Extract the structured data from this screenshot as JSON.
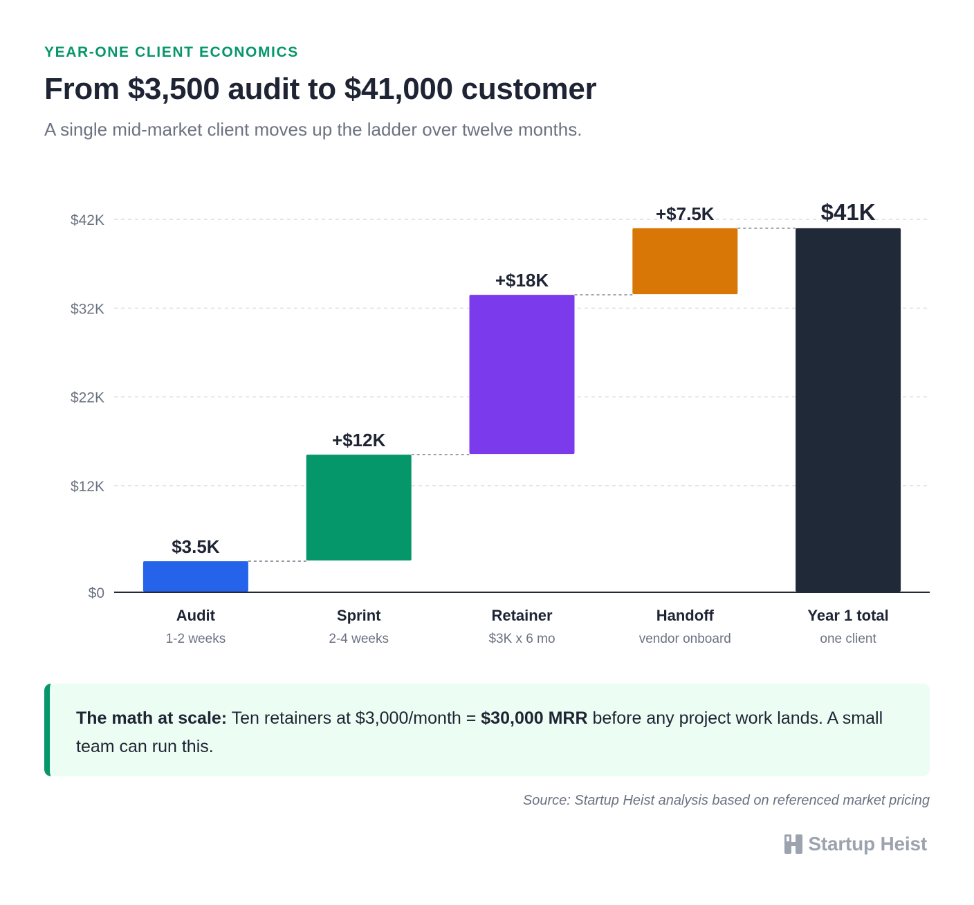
{
  "header": {
    "eyebrow": "YEAR-ONE CLIENT ECONOMICS",
    "title": "From $3,500 audit to $41,000 customer",
    "subtitle": "A single mid-market client moves up the ladder over twelve months."
  },
  "chart_data": {
    "type": "waterfall",
    "title": "From $3,500 audit to $41,000 customer",
    "subtitle": "A single mid-market client moves up the ladder over twelve months.",
    "xlabel": "",
    "ylabel": "",
    "ylim": [
      0,
      42000
    ],
    "yticks": [
      {
        "value": 0,
        "label": "$0"
      },
      {
        "value": 12000,
        "label": "$12K"
      },
      {
        "value": 22000,
        "label": "$22K"
      },
      {
        "value": 32000,
        "label": "$32K"
      },
      {
        "value": 42000,
        "label": "$42K"
      }
    ],
    "grid": true,
    "categories": [
      {
        "name": "Audit",
        "sub": "1-2 weeks",
        "start": 0,
        "end": 3500,
        "label": "$3.5K",
        "color": "#2563eb"
      },
      {
        "name": "Sprint",
        "sub": "2-4 weeks",
        "start": 3500,
        "end": 15500,
        "label": "+$12K",
        "color": "#059669"
      },
      {
        "name": "Retainer",
        "sub": "$3K x 6 mo",
        "start": 15500,
        "end": 33500,
        "label": "+$18K",
        "color": "#7c3aed"
      },
      {
        "name": "Handoff",
        "sub": "vendor onboard",
        "start": 33500,
        "end": 41000,
        "label": "+$7.5K",
        "color": "#d97706"
      },
      {
        "name": "Year 1 total",
        "sub": "one client",
        "start": 0,
        "end": 41000,
        "label": "$41K",
        "color": "#1f2937"
      }
    ]
  },
  "callout": {
    "lead": "The math at scale:",
    "text1": " Ten retainers at $3,000/month = ",
    "emphasis": "$30,000 MRR",
    "text2": " before any project work lands. A small team can run this."
  },
  "footer": {
    "source": "Source: Startup Heist analysis based on referenced market pricing",
    "brand": "Startup Heist",
    "brand_icon": "h-logo-icon"
  }
}
